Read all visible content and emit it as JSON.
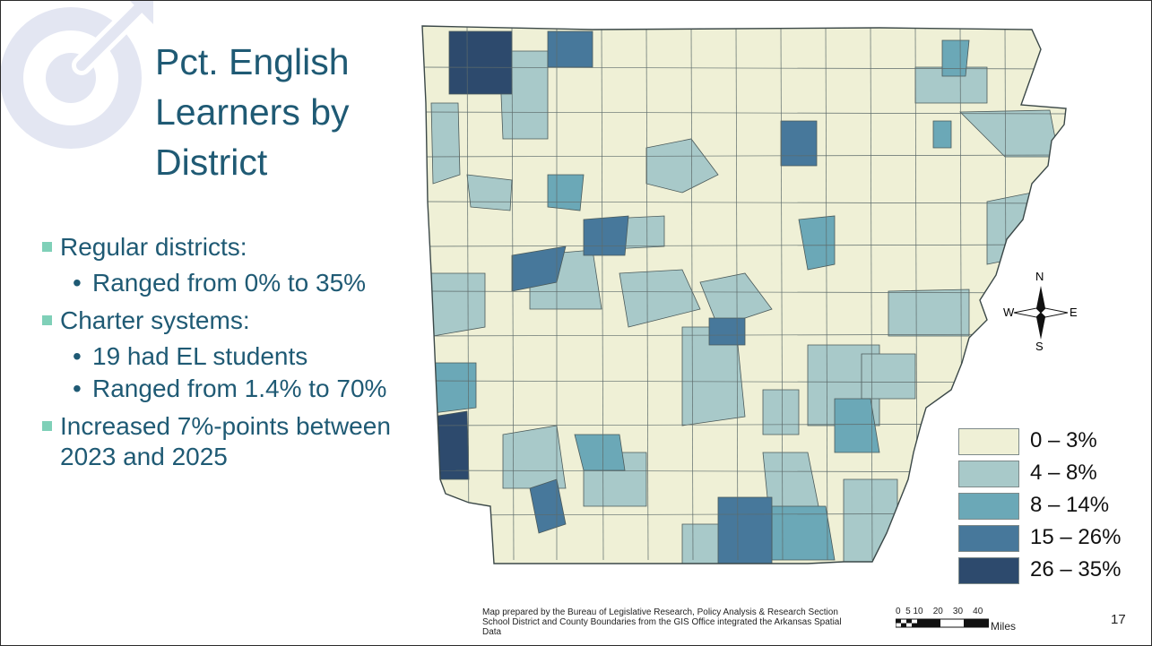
{
  "title": {
    "line1": "Pct. English",
    "line2": "Learners by",
    "line3": "District"
  },
  "bullets": [
    {
      "text": "Regular districts:",
      "sub": [
        "Ranged from 0% to 35%"
      ]
    },
    {
      "text": "Charter systems:",
      "sub": [
        "19 had EL students",
        "Ranged from 1.4% to 70%"
      ]
    },
    {
      "text": "Increased 7%-points between 2023 and 2025",
      "sub": []
    }
  ],
  "legend": [
    {
      "label": "0 – 3%",
      "color": "#eff0d6"
    },
    {
      "label": "4 – 8%",
      "color": "#a8c9c9"
    },
    {
      "label": "8 – 14%",
      "color": "#6ba8b7"
    },
    {
      "label": "15 – 26%",
      "color": "#47789b"
    },
    {
      "label": "26 – 35%",
      "color": "#2d4a6d"
    }
  ],
  "compass": {
    "n": "N",
    "s": "S",
    "e": "E",
    "w": "W"
  },
  "credit": {
    "line1": "Map prepared by the Bureau of Legislative Research, Policy Analysis & Research Section",
    "line2": "School District and County Boundaries from the GIS Office integrated the Arkansas Spatial",
    "line3": "Data"
  },
  "scale": {
    "ticks": "0  5 10    20    30    40",
    "unit": "Miles"
  },
  "page_number": "17",
  "colors": {
    "title": "#1f5a74",
    "bullet_marker": "#7fd0b8",
    "logo": "#e3e6f2"
  }
}
